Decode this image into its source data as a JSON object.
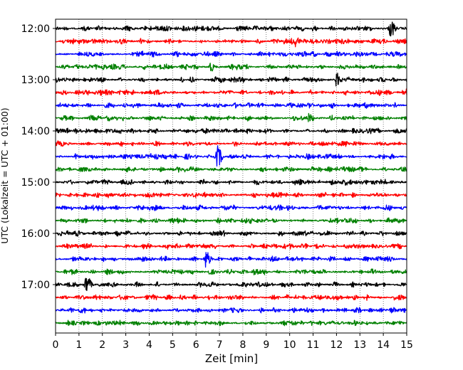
{
  "chart_data": {
    "type": "line",
    "chart_kind": "helicorder",
    "xlabel": "Zeit  [min]",
    "ylabel": "UTC (Lokalzeit = UTC + 01:00)",
    "xlim": [
      0,
      15
    ],
    "x_ticks": [
      0,
      1,
      2,
      3,
      4,
      5,
      6,
      7,
      8,
      9,
      10,
      11,
      12,
      13,
      14,
      15
    ],
    "x_grid": true,
    "line_start": "12:00",
    "line_interval_min": 15,
    "y_ticks": [
      "12:00",
      "13:00",
      "14:00",
      "15:00",
      "16:00",
      "17:00"
    ],
    "trace_colors": [
      "#000000",
      "#ff0000",
      "#0000ff",
      "#008000"
    ],
    "traces": [
      {
        "start": "12:00",
        "color": "#000000",
        "events": [
          {
            "t": 14.3,
            "amp": 13
          }
        ]
      },
      {
        "start": "12:15",
        "color": "#ff0000",
        "events": [
          {
            "t": 10.25,
            "amp": 8
          }
        ]
      },
      {
        "start": "12:30",
        "color": "#0000ff",
        "events": []
      },
      {
        "start": "12:45",
        "color": "#008000",
        "events": [
          {
            "t": 6.6,
            "amp": 7
          }
        ]
      },
      {
        "start": "13:00",
        "color": "#000000",
        "events": [
          {
            "t": 12.0,
            "amp": 10
          }
        ]
      },
      {
        "start": "13:15",
        "color": "#ff0000",
        "events": [
          {
            "t": 15.0,
            "amp": 6
          }
        ]
      },
      {
        "start": "13:30",
        "color": "#0000ff",
        "events": []
      },
      {
        "start": "13:45",
        "color": "#008000",
        "events": [
          {
            "t": 10.8,
            "amp": 7
          }
        ]
      },
      {
        "start": "14:00",
        "color": "#000000",
        "events": []
      },
      {
        "start": "14:15",
        "color": "#ff0000",
        "events": []
      },
      {
        "start": "14:30",
        "color": "#0000ff",
        "events": [
          {
            "t": 6.9,
            "amp": 16
          }
        ]
      },
      {
        "start": "14:45",
        "color": "#008000",
        "events": []
      },
      {
        "start": "15:00",
        "color": "#000000",
        "events": [
          {
            "t": 12.4,
            "amp": 5
          }
        ]
      },
      {
        "start": "15:15",
        "color": "#ff0000",
        "events": []
      },
      {
        "start": "15:30",
        "color": "#0000ff",
        "events": []
      },
      {
        "start": "15:45",
        "color": "#008000",
        "events": []
      },
      {
        "start": "16:00",
        "color": "#000000",
        "events": []
      },
      {
        "start": "16:15",
        "color": "#ff0000",
        "events": []
      },
      {
        "start": "16:30",
        "color": "#0000ff",
        "events": [
          {
            "t": 6.4,
            "amp": 13
          }
        ]
      },
      {
        "start": "16:45",
        "color": "#008000",
        "events": []
      },
      {
        "start": "17:00",
        "color": "#000000",
        "events": [
          {
            "t": 1.3,
            "amp": 14
          }
        ]
      },
      {
        "start": "17:15",
        "color": "#ff0000",
        "events": []
      },
      {
        "start": "17:30",
        "color": "#0000ff",
        "events": []
      },
      {
        "start": "17:45",
        "color": "#008000",
        "events": []
      }
    ]
  }
}
